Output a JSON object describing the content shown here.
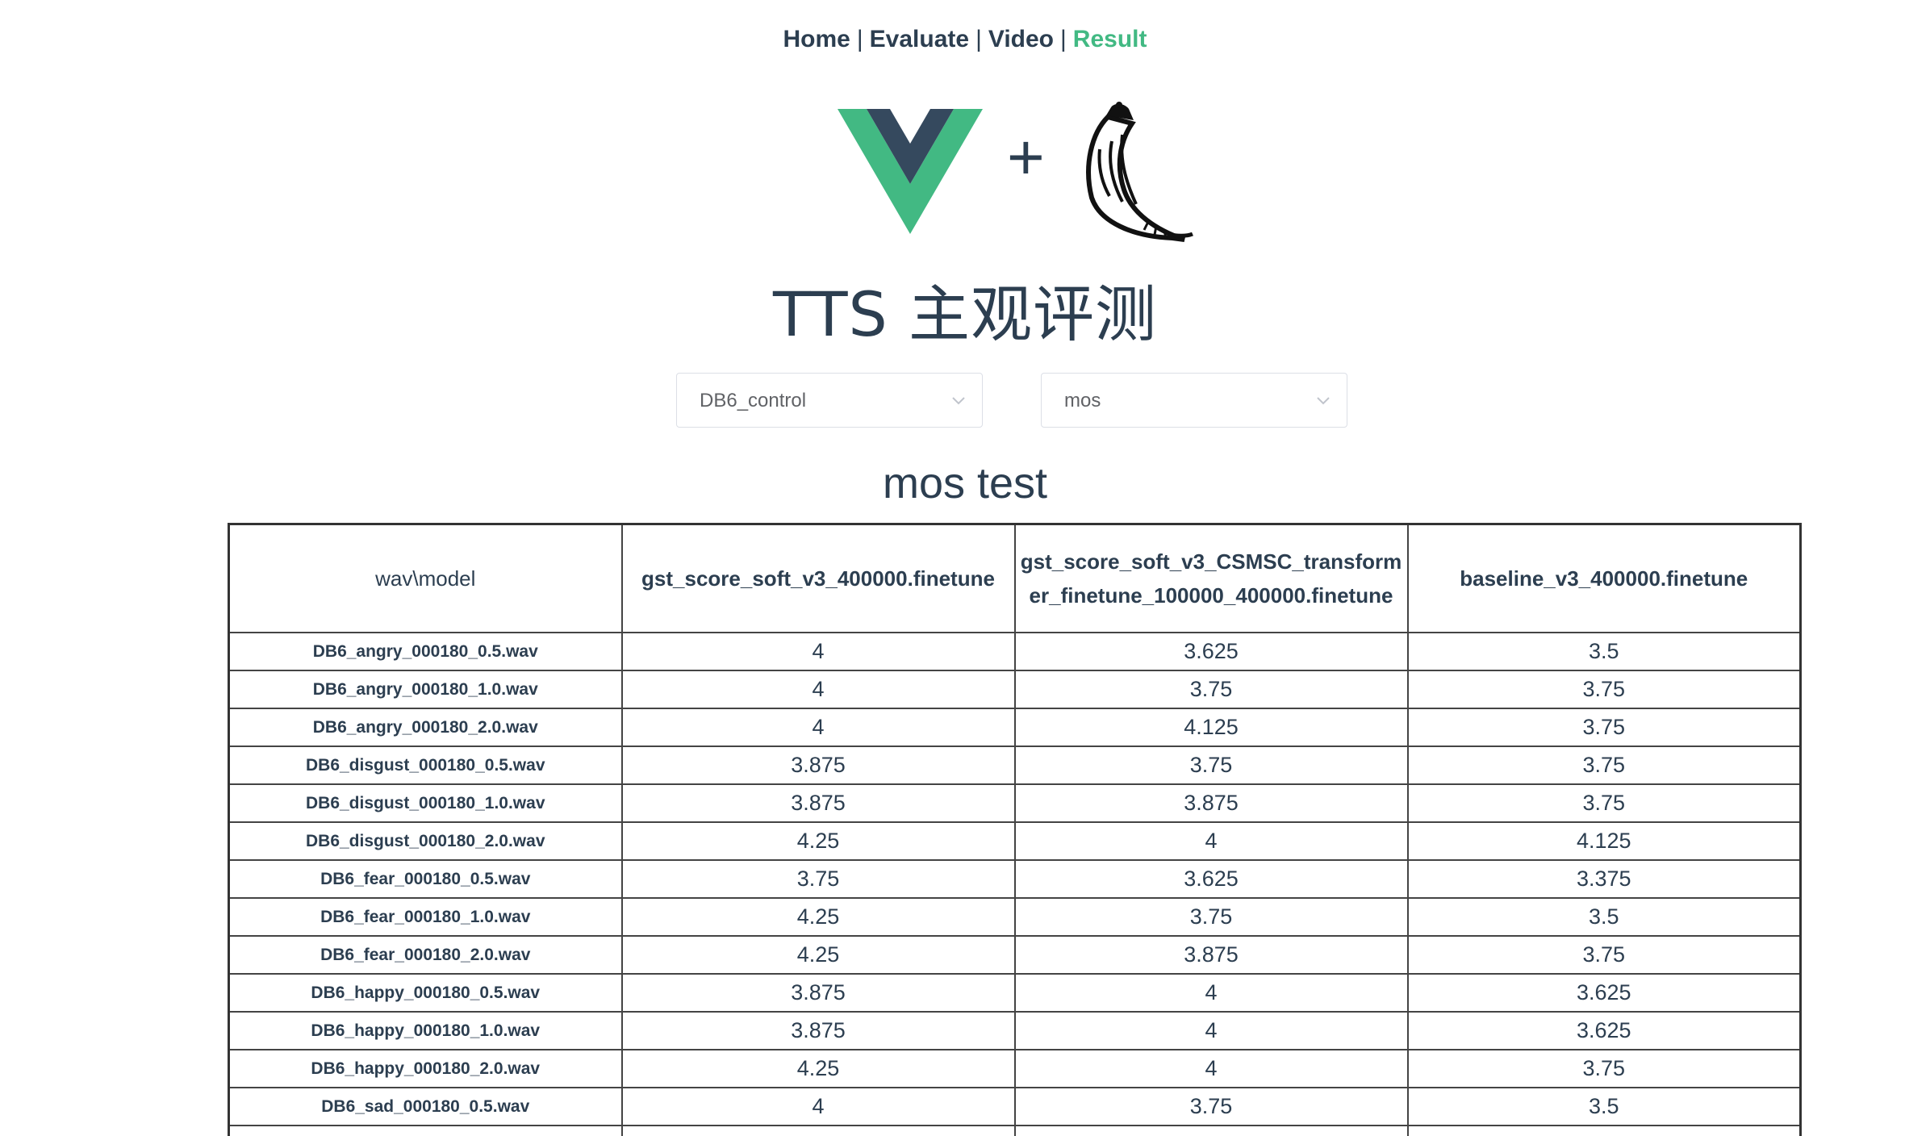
{
  "nav": {
    "items": [
      {
        "label": "Home"
      },
      {
        "label": "Evaluate"
      },
      {
        "label": "Video"
      },
      {
        "label": "Result"
      }
    ],
    "separator": "|",
    "active": "Result",
    "active_color": "#42b983"
  },
  "logos": {
    "vue": "vue-logo",
    "plus": "+",
    "flask": "flask-logo"
  },
  "app_title": "TTS 主观评测",
  "selects": {
    "dataset": {
      "value": "DB6_control"
    },
    "metric": {
      "value": "mos"
    }
  },
  "table": {
    "title": "mos test",
    "headers": [
      "wav\\model",
      "gst_score_soft_v3_400000.finetune",
      "gst_score_soft_v3_CSMSC_transformer_finetune_100000_400000.finetune",
      "baseline_v3_400000.finetune"
    ],
    "rows": [
      [
        "DB6_angry_000180_0.5.wav",
        "4",
        "3.625",
        "3.5"
      ],
      [
        "DB6_angry_000180_1.0.wav",
        "4",
        "3.75",
        "3.75"
      ],
      [
        "DB6_angry_000180_2.0.wav",
        "4",
        "4.125",
        "3.75"
      ],
      [
        "DB6_disgust_000180_0.5.wav",
        "3.875",
        "3.75",
        "3.75"
      ],
      [
        "DB6_disgust_000180_1.0.wav",
        "3.875",
        "3.875",
        "3.75"
      ],
      [
        "DB6_disgust_000180_2.0.wav",
        "4.25",
        "4",
        "4.125"
      ],
      [
        "DB6_fear_000180_0.5.wav",
        "3.75",
        "3.625",
        "3.375"
      ],
      [
        "DB6_fear_000180_1.0.wav",
        "4.25",
        "3.75",
        "3.5"
      ],
      [
        "DB6_fear_000180_2.0.wav",
        "4.25",
        "3.875",
        "3.75"
      ],
      [
        "DB6_happy_000180_0.5.wav",
        "3.875",
        "4",
        "3.625"
      ],
      [
        "DB6_happy_000180_1.0.wav",
        "3.875",
        "4",
        "3.625"
      ],
      [
        "DB6_happy_000180_2.0.wav",
        "4.25",
        "4",
        "3.75"
      ],
      [
        "DB6_sad_000180_0.5.wav",
        "4",
        "3.75",
        "3.5"
      ],
      [
        "",
        "",
        "",
        ""
      ]
    ]
  }
}
